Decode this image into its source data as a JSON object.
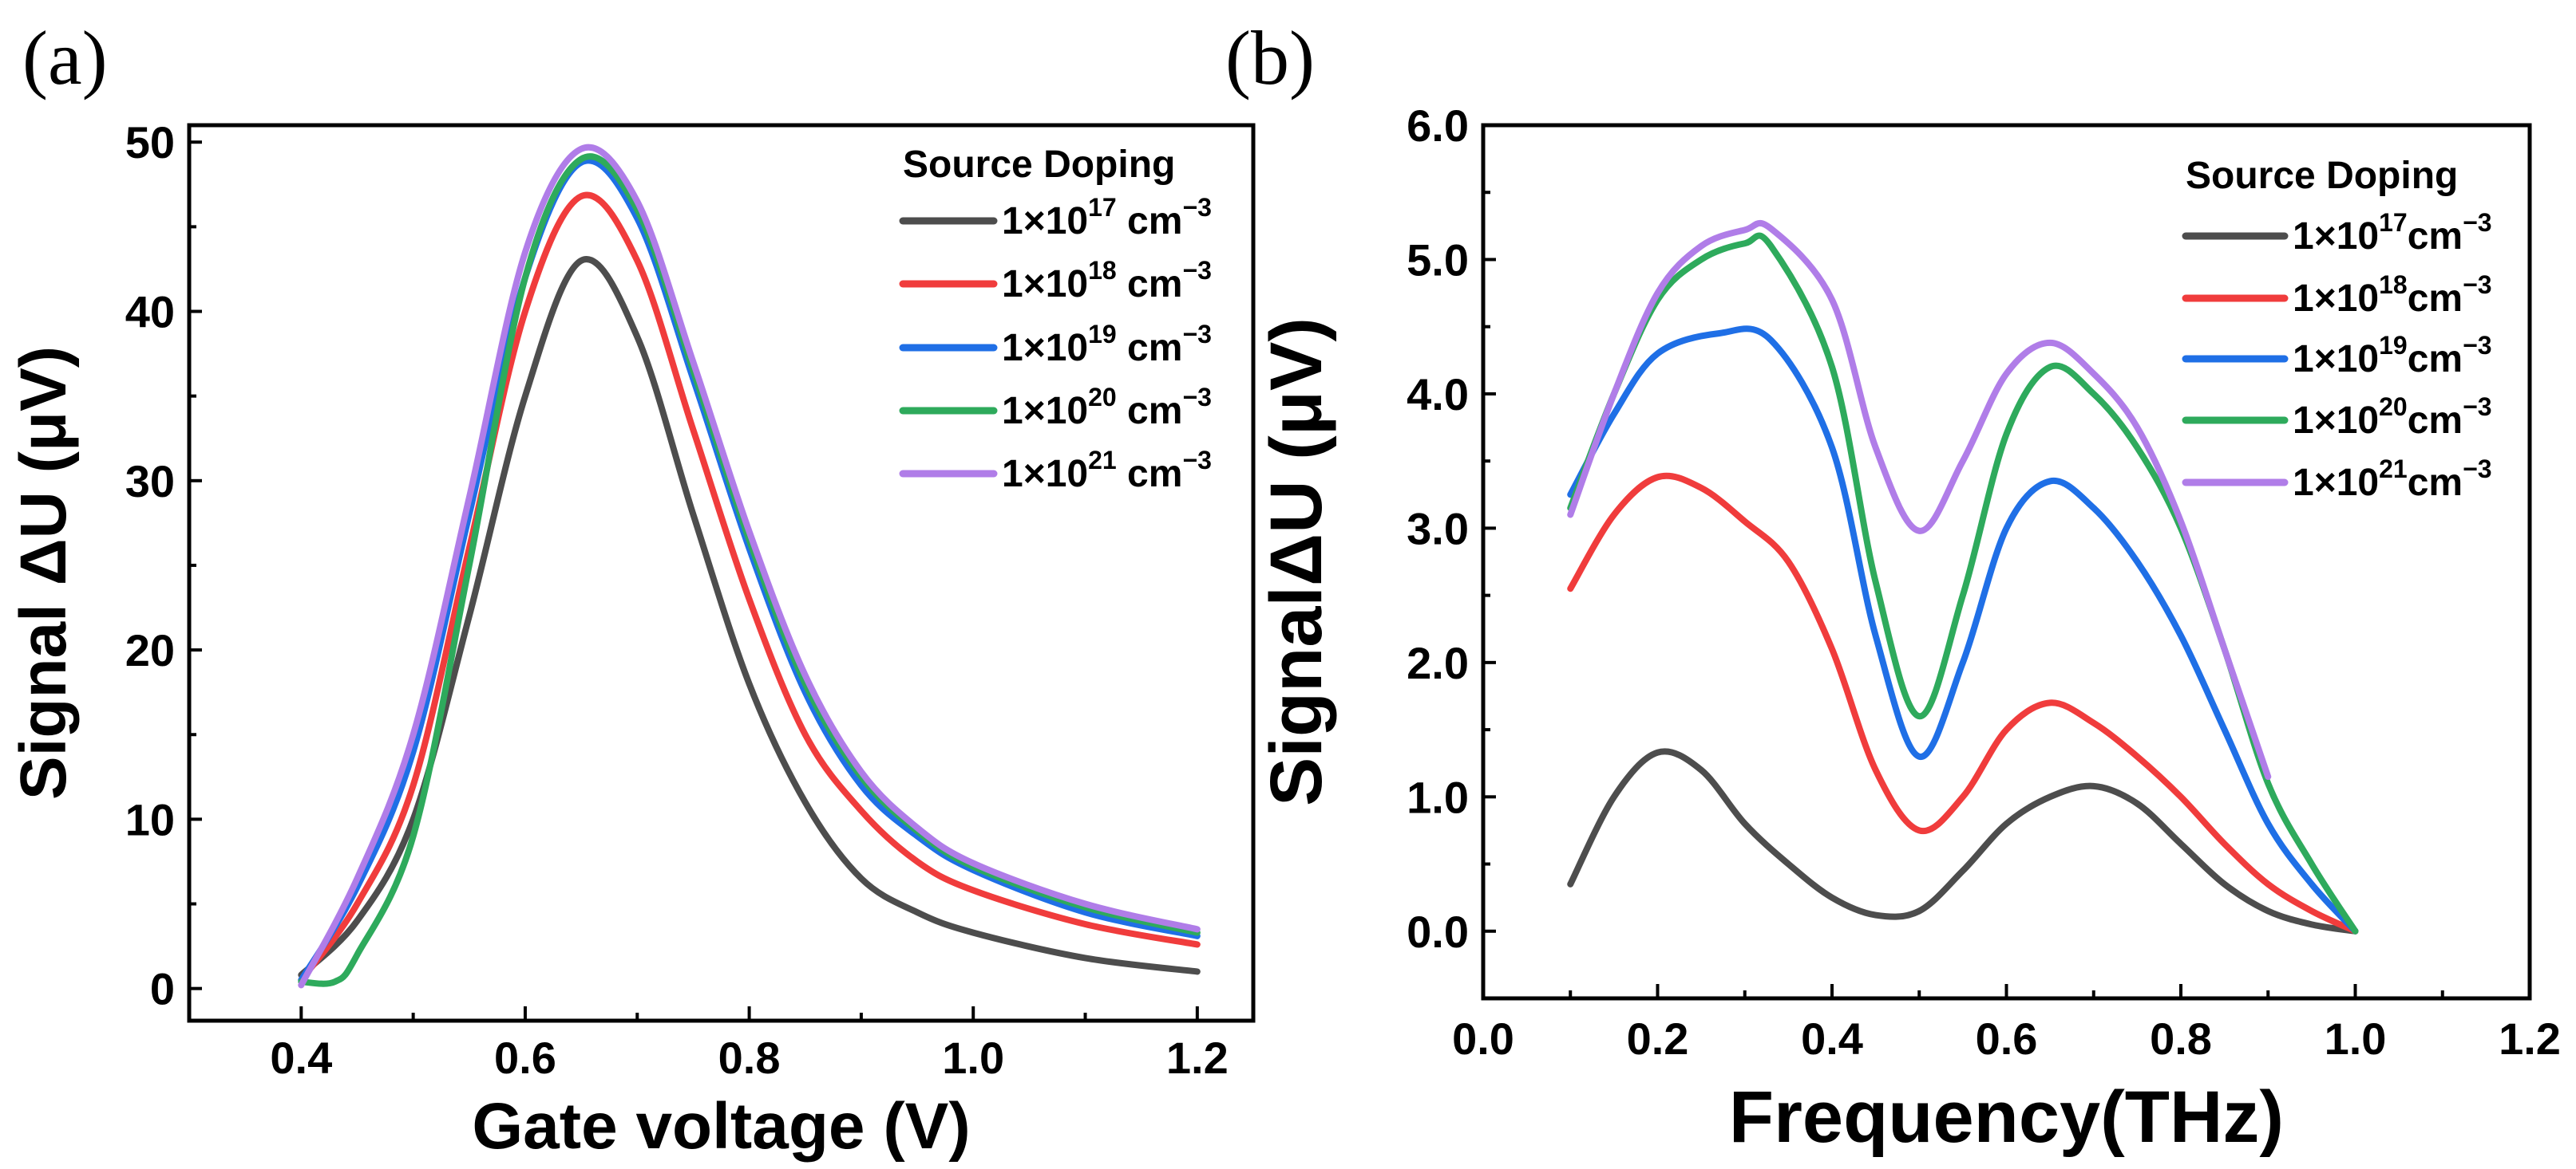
{
  "chart_data": [
    {
      "panel_label": "(a)",
      "type": "line",
      "xlabel": "Gate voltage (V)",
      "ylabel": "Signal ΔU (μV)",
      "xlim": [
        0.3,
        1.25
      ],
      "ylim": [
        -1.9,
        51
      ],
      "xticks": [
        0.4,
        0.6,
        0.8,
        1.0,
        1.2
      ],
      "xtick_labels": [
        "0.4",
        "0.6",
        "0.8",
        "1.0",
        "1.2"
      ],
      "yticks": [
        0,
        10,
        20,
        30,
        40,
        50
      ],
      "ytick_labels": [
        "0",
        "10",
        "20",
        "30",
        "40",
        "50"
      ],
      "x_minor": 0.1,
      "y_minor": 5,
      "grid": false,
      "legend": {
        "title": "Source Doping",
        "placement": "top-right"
      },
      "series": [
        {
          "name": "1×10^17 cm^-3",
          "base": "1×10",
          "exp": "17",
          "unit": " cm",
          "unit_exp": "−3",
          "color": "#4d4d4d",
          "x": [
            0.4,
            0.45,
            0.5,
            0.55,
            0.6,
            0.65,
            0.7,
            0.75,
            0.8,
            0.85,
            0.9,
            0.95,
            1.0,
            1.1,
            1.2
          ],
          "y": [
            0.8,
            4,
            10,
            22,
            35,
            43,
            38.5,
            28,
            18,
            11,
            6.5,
            4.5,
            3.3,
            1.8,
            1.0
          ]
        },
        {
          "name": "1×10^18 cm^-3",
          "base": "1×10",
          "exp": "18",
          "unit": " cm",
          "unit_exp": "−3",
          "color": "#f03c3c",
          "x": [
            0.4,
            0.45,
            0.5,
            0.55,
            0.6,
            0.65,
            0.7,
            0.75,
            0.8,
            0.85,
            0.9,
            0.95,
            1.0,
            1.1,
            1.2
          ],
          "y": [
            0.5,
            5,
            12,
            26,
            40,
            46.8,
            43,
            33,
            23,
            15,
            10.5,
            7.5,
            5.8,
            3.8,
            2.6
          ]
        },
        {
          "name": "1×10^19 cm^-3",
          "base": "1×10",
          "exp": "19",
          "unit": " cm",
          "unit_exp": "−3",
          "color": "#1f6fe6",
          "x": [
            0.4,
            0.45,
            0.5,
            0.55,
            0.6,
            0.65,
            0.7,
            0.75,
            0.8,
            0.85,
            0.9,
            0.95,
            1.0,
            1.1,
            1.2
          ],
          "y": [
            0.5,
            6,
            14,
            28,
            42,
            48.8,
            45.5,
            36,
            26,
            17.5,
            12,
            9,
            7,
            4.5,
            3.1
          ]
        },
        {
          "name": "1×10^20 cm^-3",
          "base": "1×10",
          "exp": "20",
          "unit": " cm",
          "unit_exp": "−3",
          "color": "#2eaa5c",
          "x": [
            0.4,
            0.43,
            0.45,
            0.5,
            0.55,
            0.6,
            0.65,
            0.7,
            0.75,
            0.8,
            0.85,
            0.9,
            0.95,
            1.0,
            1.1,
            1.2
          ],
          "y": [
            0.4,
            0.4,
            2,
            9,
            25,
            42,
            49,
            46,
            36.5,
            26.5,
            18,
            12.5,
            9.3,
            7.2,
            4.8,
            3.3
          ]
        },
        {
          "name": "1×10^21 cm^-3",
          "base": "1×10",
          "exp": "21",
          "unit": " cm",
          "unit_exp": "−3",
          "color": "#b07de8",
          "x": [
            0.4,
            0.45,
            0.5,
            0.55,
            0.6,
            0.65,
            0.7,
            0.75,
            0.8,
            0.85,
            0.9,
            0.95,
            1.0,
            1.1,
            1.2
          ],
          "y": [
            0.2,
            6.5,
            15,
            29,
            43.5,
            49.6,
            46.5,
            37,
            27,
            18.5,
            12.8,
            9.5,
            7.4,
            5,
            3.5
          ]
        }
      ]
    },
    {
      "panel_label": "(b)",
      "type": "line",
      "xlabel": "Frequency(THz)",
      "ylabel": "SignalΔU (μV)",
      "xlim": [
        0,
        1.2
      ],
      "ylim": [
        -0.5,
        6.0
      ],
      "xticks": [
        0,
        0.2,
        0.4,
        0.6,
        0.8,
        1.0,
        1.2
      ],
      "xtick_labels": [
        "0.0",
        "0.2",
        "0.4",
        "0.6",
        "0.8",
        "1.0",
        "1.2"
      ],
      "yticks": [
        0,
        1,
        2,
        3,
        4,
        5,
        6
      ],
      "ytick_labels": [
        "0.0",
        "1.0",
        "2.0",
        "3.0",
        "4.0",
        "5.0",
        "6.0"
      ],
      "x_minor": 0.1,
      "y_minor": 0.5,
      "grid": false,
      "legend": {
        "title": "Source Doping",
        "placement": "top-right"
      },
      "series": [
        {
          "name": "1×10^17cm^-3",
          "base": "1×10",
          "exp": "17",
          "unit": "cm",
          "unit_exp": "−3",
          "color": "#4d4d4d",
          "x": [
            0.1,
            0.15,
            0.2,
            0.25,
            0.3,
            0.35,
            0.4,
            0.45,
            0.5,
            0.55,
            0.6,
            0.65,
            0.7,
            0.75,
            0.8,
            0.85,
            0.9,
            0.95,
            1.0
          ],
          "y": [
            0.35,
            1.0,
            1.33,
            1.2,
            0.8,
            0.5,
            0.25,
            0.12,
            0.15,
            0.45,
            0.8,
            1.0,
            1.08,
            0.95,
            0.65,
            0.35,
            0.15,
            0.05,
            0.0
          ]
        },
        {
          "name": "1×10^18cm^-3",
          "base": "1×10",
          "exp": "18",
          "unit": "cm",
          "unit_exp": "−3",
          "color": "#f03c3c",
          "x": [
            0.1,
            0.15,
            0.2,
            0.25,
            0.3,
            0.35,
            0.4,
            0.45,
            0.5,
            0.55,
            0.6,
            0.65,
            0.7,
            0.75,
            0.8,
            0.85,
            0.9,
            0.95,
            1.0
          ],
          "y": [
            2.55,
            3.1,
            3.38,
            3.3,
            3.05,
            2.75,
            2.1,
            1.2,
            0.75,
            1.0,
            1.5,
            1.7,
            1.55,
            1.3,
            1.0,
            0.65,
            0.35,
            0.15,
            0.0
          ]
        },
        {
          "name": "1×10^19cm^-3",
          "base": "1×10",
          "exp": "19",
          "unit": "cm",
          "unit_exp": "−3",
          "color": "#1f6fe6",
          "x": [
            0.1,
            0.15,
            0.2,
            0.27,
            0.33,
            0.4,
            0.45,
            0.5,
            0.55,
            0.6,
            0.65,
            0.7,
            0.75,
            0.8,
            0.85,
            0.9,
            0.95,
            1.0
          ],
          "y": [
            3.25,
            3.85,
            4.3,
            4.45,
            4.4,
            3.6,
            2.2,
            1.3,
            2.0,
            3.0,
            3.35,
            3.15,
            2.75,
            2.2,
            1.5,
            0.8,
            0.35,
            0.0
          ]
        },
        {
          "name": "1×10^20cm^-3",
          "base": "1×10",
          "exp": "20",
          "unit": "cm",
          "unit_exp": "−3",
          "color": "#2eaa5c",
          "x": [
            0.1,
            0.15,
            0.2,
            0.25,
            0.3,
            0.33,
            0.4,
            0.45,
            0.5,
            0.55,
            0.6,
            0.65,
            0.7,
            0.75,
            0.8,
            0.85,
            0.9,
            0.95,
            1.0
          ],
          "y": [
            3.15,
            4.0,
            4.7,
            5.0,
            5.12,
            5.1,
            4.2,
            2.6,
            1.6,
            2.5,
            3.7,
            4.2,
            4.0,
            3.6,
            3.0,
            2.1,
            1.1,
            0.5,
            0.0
          ]
        },
        {
          "name": "1×10^21cm^-3",
          "base": "1×10",
          "exp": "21",
          "unit": "cm",
          "unit_exp": "−3",
          "color": "#b07de8",
          "x": [
            0.1,
            0.15,
            0.2,
            0.25,
            0.3,
            0.33,
            0.4,
            0.45,
            0.5,
            0.55,
            0.6,
            0.65,
            0.7,
            0.75,
            0.8,
            0.85,
            0.9
          ],
          "y": [
            3.1,
            4.0,
            4.75,
            5.1,
            5.22,
            5.23,
            4.7,
            3.6,
            2.98,
            3.5,
            4.15,
            4.38,
            4.15,
            3.75,
            3.05,
            2.1,
            1.15
          ]
        }
      ]
    }
  ]
}
